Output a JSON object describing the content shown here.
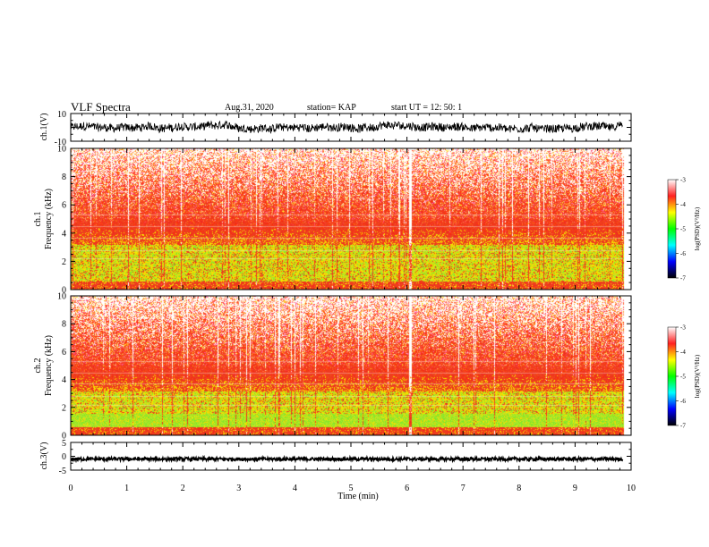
{
  "header": {
    "title": "VLF Spectra",
    "date": "Aug.31, 2020",
    "station": "station= KAP",
    "start_time": "start UT =  12: 50: 1"
  },
  "colors": {
    "spectrogram_high": "#ee2222",
    "spectrogram_mid": "#f5d800",
    "spectrogram_low": "#33dd33",
    "trace": "#000000"
  },
  "colorbar_stops": [
    "#ffffff",
    "#ff2020",
    "#ffff00",
    "#00ff00",
    "#00ffff",
    "#0000ff",
    "#000000"
  ],
  "chart_data": [
    {
      "name": "ch1-waveform",
      "type": "line",
      "ylabel": "ch.1(V)",
      "ylim": [
        -10,
        10
      ],
      "yticks": [
        "10",
        "-10"
      ],
      "xlim": [
        0,
        10
      ],
      "x_extent_min": 9.85,
      "values_note": "noisy waveform spanning roughly -4 to +4 V"
    },
    {
      "name": "ch1-spectrogram",
      "type": "heatmap",
      "ylabel_line1": "ch.1",
      "ylabel_line2": "Frequency (kHz)",
      "ylim": [
        0,
        10
      ],
      "yticks": [
        "0",
        "2",
        "4",
        "6",
        "8",
        "10"
      ],
      "xlim": [
        0,
        10
      ],
      "colorbar_label": "log(PSD)(V²/Hz)",
      "colorbar_ticks": [
        "-3",
        "-4",
        "-5",
        "-6",
        "-7"
      ],
      "colorbar_range": [
        -7,
        -3
      ]
    },
    {
      "name": "ch2-spectrogram",
      "type": "heatmap",
      "ylabel_line1": "ch.2",
      "ylabel_line2": "Frequency (kHz)",
      "ylim": [
        0,
        10
      ],
      "yticks": [
        "0",
        "2",
        "4",
        "6",
        "8",
        "10"
      ],
      "xlim": [
        0,
        10
      ],
      "colorbar_label": "log(PSD)(V²/Hz)",
      "colorbar_ticks": [
        "-3",
        "-4",
        "-5",
        "-6",
        "-7"
      ],
      "colorbar_range": [
        -7,
        -3
      ]
    },
    {
      "name": "ch3-waveform",
      "type": "line",
      "ylabel": "ch.3(V)",
      "ylim": [
        -5,
        5
      ],
      "yticks": [
        "5",
        "0",
        "-5"
      ],
      "xlim": [
        0,
        10
      ],
      "values_note": "flat thick band near -1 V"
    }
  ],
  "x_axis": {
    "label": "Time (min)",
    "ticks": [
      "0",
      "1",
      "2",
      "3",
      "4",
      "5",
      "6",
      "7",
      "8",
      "9",
      "10"
    ]
  }
}
